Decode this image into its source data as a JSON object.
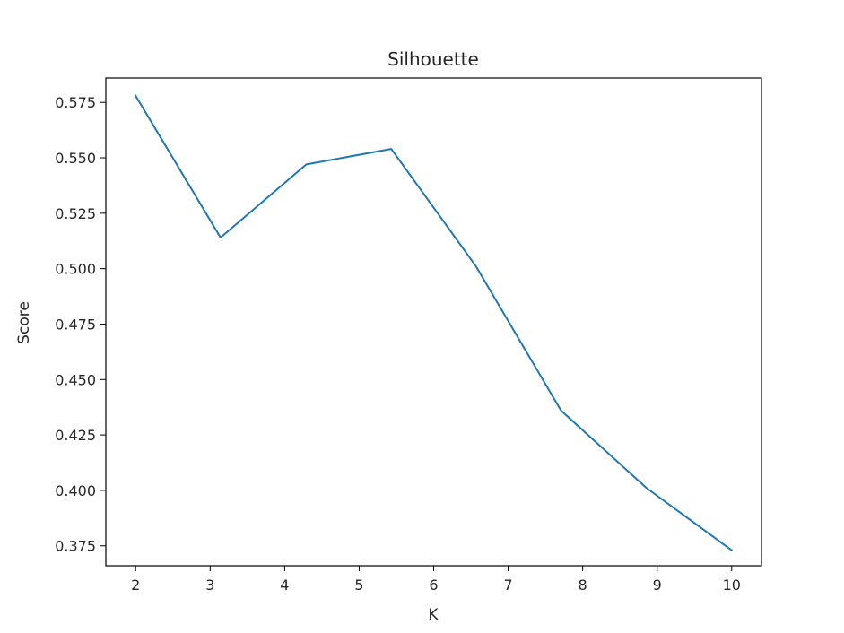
{
  "chart_data": {
    "type": "line",
    "title": "Silhouette",
    "xlabel": "K",
    "ylabel": "Score",
    "xlim": [
      1.6,
      10.4
    ],
    "ylim": [
      0.366,
      0.586
    ],
    "x_ticks": [
      2,
      3,
      4,
      5,
      6,
      7,
      8,
      9,
      10
    ],
    "x_tick_labels": [
      "2",
      "3",
      "4",
      "5",
      "6",
      "7",
      "8",
      "9",
      "10"
    ],
    "y_ticks": [
      0.375,
      0.4,
      0.425,
      0.45,
      0.475,
      0.5,
      0.525,
      0.55,
      0.575
    ],
    "y_tick_labels": [
      "0.375",
      "0.400",
      "0.425",
      "0.450",
      "0.475",
      "0.500",
      "0.525",
      "0.550",
      "0.575"
    ],
    "grid": false,
    "series": [
      {
        "color": "#1f77b4",
        "x": [
          2,
          3.14,
          4.29,
          5.43,
          6.57,
          7.71,
          8.86,
          10
        ],
        "y": [
          0.578,
          0.514,
          0.547,
          0.554,
          0.501,
          0.436,
          0.401,
          0.373
        ]
      }
    ]
  }
}
